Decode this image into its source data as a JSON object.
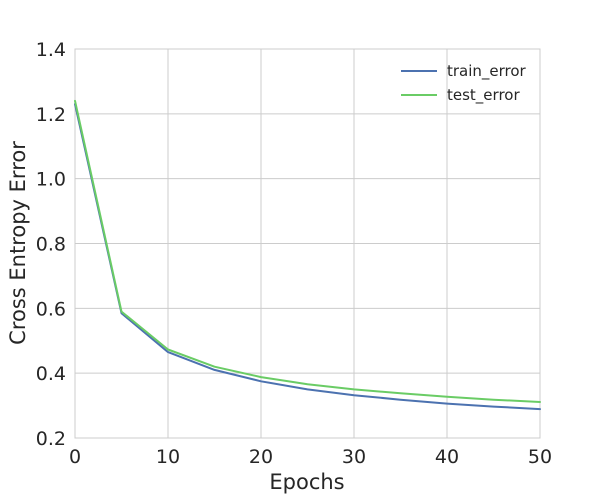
{
  "chart_data": {
    "type": "line",
    "xlabel": "Epochs",
    "ylabel": "Cross Entropy Error",
    "xlim": [
      0,
      50
    ],
    "ylim": [
      0.2,
      1.4
    ],
    "x_ticks": [
      0,
      10,
      20,
      30,
      40,
      50
    ],
    "y_ticks": [
      0.2,
      0.4,
      0.6,
      0.8,
      1.0,
      1.2,
      1.4
    ],
    "x_tick_labels": [
      "0",
      "10",
      "20",
      "30",
      "40",
      "50"
    ],
    "y_tick_labels": [
      "0.2",
      "0.4",
      "0.6",
      "0.8",
      "1.0",
      "1.2",
      "1.4"
    ],
    "grid": true,
    "legend_position": "top-right",
    "x": [
      0,
      5,
      10,
      15,
      20,
      25,
      30,
      35,
      40,
      45,
      50
    ],
    "series": [
      {
        "name": "train_error",
        "color": "#4c72b0",
        "values": [
          1.23,
          0.585,
          0.465,
          0.41,
          0.375,
          0.35,
          0.332,
          0.318,
          0.306,
          0.297,
          0.289
        ]
      },
      {
        "name": "test_error",
        "color": "#6acc65",
        "values": [
          1.24,
          0.59,
          0.473,
          0.42,
          0.388,
          0.366,
          0.35,
          0.338,
          0.327,
          0.318,
          0.311
        ]
      }
    ]
  }
}
